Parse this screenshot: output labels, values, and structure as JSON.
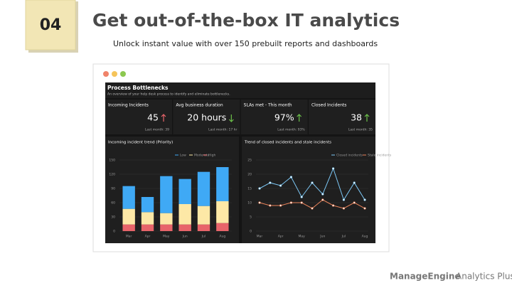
{
  "slide": {
    "number": "04",
    "title": "Get out-of-the-box IT analytics",
    "subtitle": "Unlock instant value with over 150 prebuilt reports and dashboards"
  },
  "dashboard": {
    "title": "Process Bottlenecks",
    "subtitle": "An overview of your help desk process to identify and eliminate bottlenecks.",
    "kpis": [
      {
        "label": "Incoming Incidents",
        "value": "45",
        "trend": "up",
        "previous": "Last month: 39"
      },
      {
        "label": "Avg business duration",
        "value": "20 hours",
        "trend": "down",
        "previous": "Last month: 17 hr"
      },
      {
        "label": "SLAs met - This month",
        "value": "97%",
        "trend": "up",
        "previous": "Last month: 93%"
      },
      {
        "label": "Closed Incidents",
        "value": "38",
        "trend": "up",
        "previous": "Last month: 35"
      }
    ],
    "charts": [
      {
        "type": "bar",
        "stacked": true,
        "title": "Incoming incident trend (Priority)",
        "categories": [
          "Mar",
          "Apr",
          "May",
          "Jun",
          "Jul",
          "Aug"
        ],
        "series": [
          {
            "name": "High",
            "color": "#e8646a",
            "values": [
              14,
              14,
              14,
              14,
              14,
              17
            ]
          },
          {
            "name": "Moderate",
            "color": "#fde8a6",
            "values": [
              33,
              26,
              24,
              43,
              39,
              46
            ]
          },
          {
            "name": "Low",
            "color": "#3fa9f5",
            "values": [
              48,
              32,
              78,
              53,
              72,
              72
            ]
          }
        ],
        "legend_order": [
          "Low",
          "Moderate",
          "High"
        ],
        "ylim": [
          0,
          150
        ],
        "yticks": [
          0,
          30,
          60,
          90,
          120,
          150
        ]
      },
      {
        "type": "line",
        "title": "Trend of closed incidents and stale incidents",
        "categories": [
          "Mar",
          null,
          "Apr",
          null,
          "May",
          null,
          "Jun",
          null,
          "Jul",
          null,
          "Aug"
        ],
        "series": [
          {
            "name": "Closed incidents",
            "color": "#7cc7f5",
            "values": [
              15,
              17,
              16,
              19,
              12,
              17,
              13,
              22,
              11,
              17,
              11
            ]
          },
          {
            "name": "Stale incidents",
            "color": "#e8825a",
            "values": [
              10,
              9,
              9,
              10,
              10,
              8,
              11,
              9,
              8,
              10,
              8
            ]
          }
        ],
        "ylim": [
          0,
          25
        ],
        "yticks": [
          0,
          5,
          10,
          15,
          20,
          25
        ]
      }
    ]
  },
  "logo": {
    "brand": "ManageEngine",
    "product": "Analytics Plus"
  }
}
